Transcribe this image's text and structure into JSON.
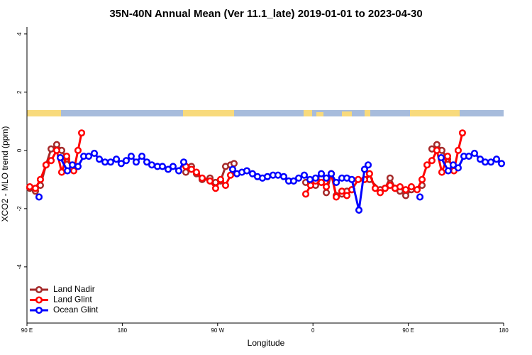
{
  "chart_data": {
    "type": "line",
    "title": "35N-40N Annual Mean (Ver 11.1_late)   2019-01-01 to 2023-04-30",
    "x_label": "Longitude",
    "y_label": "XCO2 - MLO trend (ppm)",
    "xlim": [
      90,
      540
    ],
    "ylim": [
      -5.93,
      4.24
    ],
    "xticks": [
      {
        "value": 90,
        "label": "90 E"
      },
      {
        "value": 180,
        "label": "180"
      },
      {
        "value": 270,
        "label": "90 W"
      },
      {
        "value": 360,
        "label": "0"
      },
      {
        "value": 450,
        "label": "90 E"
      },
      {
        "value": 540,
        "label": "180"
      }
    ],
    "yticks": [
      -4,
      -2,
      0,
      2,
      4
    ],
    "legend": "lower left",
    "series": [
      {
        "name": "Land Nadir",
        "color": "#a52a2a",
        "x": [
          92.7,
          98,
          102.7,
          108,
          112.8,
          118.1,
          122.8,
          127.5,
          132.9,
          null,
          240,
          245.3,
          250,
          255.4,
          262.8,
          268.1,
          272.8,
          277.5,
          282.2,
          285.5,
          null,
          353.2,
          357.8,
          362.5,
          367.9,
          372.6,
          377.3,
          382,
          387.3,
          392,
          396.7,
          null,
          413.4,
          423.5,
          428.1,
          432.8,
          437.5,
          442.2,
          447.6,
          452.9,
          463,
          null,
          472.3,
          477,
          481.7,
          487.1,
          493.1
        ],
        "values": [
          -1.3,
          -1.4,
          -1.2,
          -0.5,
          0.05,
          0.2,
          0.0,
          -0.3,
          -0.6,
          null,
          -0.75,
          -0.55,
          -0.8,
          -1.0,
          -0.95,
          -1.1,
          -1.05,
          -0.55,
          -0.5,
          -0.45,
          null,
          -1.1,
          -1.1,
          -1.2,
          -0.95,
          -1.45,
          -0.8,
          -1.55,
          -1.5,
          -1.4,
          -1.35,
          null,
          -1.0,
          -1.35,
          -1.3,
          -0.95,
          -1.3,
          -1.4,
          -1.55,
          -1.35,
          -1.2,
          null,
          0.05,
          0.2,
          0.0,
          -0.3,
          -0.6
        ]
      },
      {
        "name": "Land Glint",
        "color": "#ff0000",
        "x": [
          92.7,
          98,
          102.7,
          108,
          112.8,
          118.1,
          122.8,
          127.5,
          134.2,
          138.2,
          141.6,
          null,
          240,
          245.3,
          250,
          255.4,
          262.8,
          268.1,
          272.8,
          277.5,
          282.2,
          null,
          353.2,
          357.8,
          362.5,
          367.9,
          372.6,
          377.3,
          382,
          387.3,
          392,
          396.7,
          402.7,
          408.7,
          413.4,
          418.8,
          423.5,
          428.1,
          432.8,
          437.5,
          442.2,
          447.6,
          452.9,
          458.3,
          463,
          467.7,
          472.3,
          477,
          481.7,
          487.1,
          493.1,
          497.1,
          501.1
        ],
        "values": [
          -1.25,
          -1.3,
          -1.0,
          -0.5,
          -0.35,
          0.0,
          -0.75,
          -0.2,
          -0.7,
          0.0,
          0.6,
          null,
          -0.55,
          -0.65,
          -0.75,
          -0.95,
          -1.05,
          -1.3,
          -1.0,
          -1.2,
          -0.85,
          null,
          -1.5,
          -1.2,
          -1.05,
          -1.1,
          -1.25,
          -0.8,
          -1.6,
          -1.4,
          -1.55,
          -1.35,
          -1.0,
          -1.0,
          -0.8,
          -1.3,
          -1.45,
          -1.3,
          -1.2,
          -1.3,
          -1.25,
          -1.35,
          -1.25,
          -1.35,
          -1.0,
          -0.5,
          -0.35,
          0.0,
          -0.75,
          -0.2,
          -0.7,
          0.0,
          0.6
        ]
      },
      {
        "name": "Ocean Glint",
        "color": "#0000ff",
        "x": [
          101.4,
          null,
          121.5,
          128.2,
          132.9,
          138.2,
          143.6,
          148.3,
          153.6,
          158.3,
          163.7,
          169,
          174.4,
          179,
          183.7,
          188.4,
          193.1,
          198.5,
          203.2,
          207.9,
          213.2,
          217.9,
          223.3,
          227.9,
          233.3,
          238,
          null,
          284.2,
          288.2,
          292.9,
          297.6,
          302.9,
          307.6,
          312.3,
          317,
          322.3,
          327,
          332.4,
          337.1,
          341.8,
          346.5,
          351.8,
          357.2,
          362.5,
          367.9,
          372.6,
          377.3,
          382,
          387.3,
          392,
          396.7,
          403.4,
          408.7,
          412.1,
          null,
          461,
          null,
          481,
          487.7,
          492.4,
          497.1,
          502.5,
          507.2,
          512.5,
          517.9,
          522.6,
          528,
          533.3,
          538
        ],
        "values": [
          -1.6,
          null,
          -0.25,
          -0.7,
          -0.5,
          -0.55,
          -0.2,
          -0.2,
          -0.1,
          -0.3,
          -0.4,
          -0.4,
          -0.3,
          -0.45,
          -0.35,
          -0.2,
          -0.4,
          -0.2,
          -0.4,
          -0.5,
          -0.55,
          -0.55,
          -0.65,
          -0.55,
          -0.7,
          -0.4,
          null,
          -0.65,
          -0.8,
          -0.75,
          -0.7,
          -0.8,
          -0.9,
          -0.95,
          -0.9,
          -0.85,
          -0.85,
          -0.9,
          -1.05,
          -1.05,
          -0.95,
          -0.85,
          -1.0,
          -0.95,
          -0.8,
          -0.95,
          -0.8,
          -1.1,
          -0.95,
          -0.95,
          -1.0,
          -2.05,
          -0.65,
          -0.5,
          null,
          -1.6,
          null,
          -0.25,
          -0.7,
          -0.5,
          -0.6,
          -0.2,
          -0.2,
          -0.1,
          -0.3,
          -0.4,
          -0.4,
          -0.3,
          -0.45
        ]
      }
    ]
  }
}
